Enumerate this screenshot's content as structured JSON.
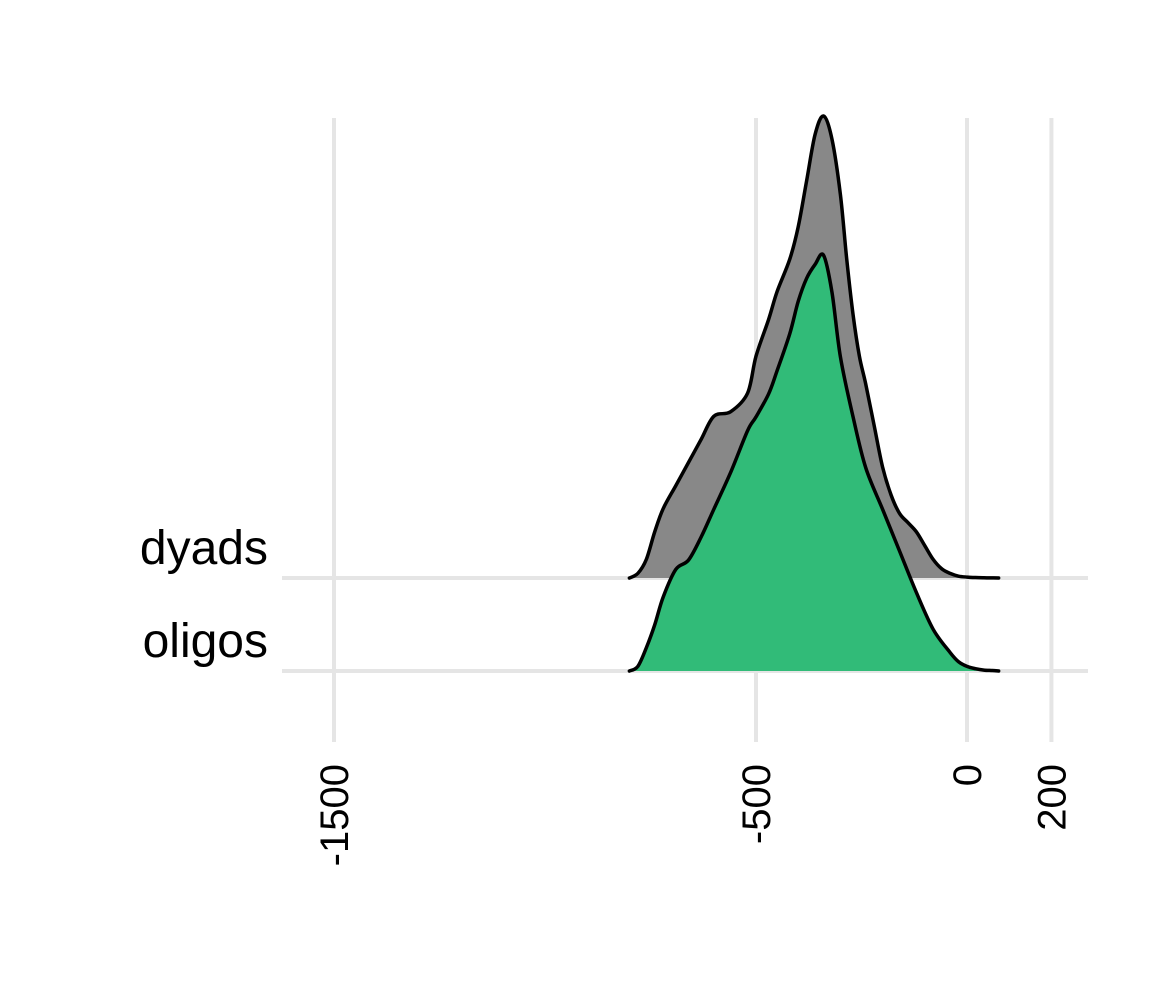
{
  "chart_data": {
    "type": "area",
    "subtype": "ridgeline-density",
    "title": "",
    "xlabel": "",
    "ylabel": "",
    "xlim": [
      -1580,
      380
    ],
    "x_ticks": [
      -1500,
      -500,
      0,
      200
    ],
    "x_tick_labels": [
      "-1500",
      "-500",
      "0",
      "200"
    ],
    "grid": true,
    "categories": [
      "dyads",
      "oligos"
    ],
    "series": [
      {
        "name": "dyads",
        "color": "#888888",
        "x": [
          -800,
          -780,
          -760,
          -740,
          -720,
          -690,
          -660,
          -630,
          -600,
          -560,
          -520,
          -500,
          -470,
          -450,
          -420,
          -400,
          -380,
          -360,
          -340,
          -320,
          -300,
          -285,
          -270,
          -255,
          -240,
          -220,
          -200,
          -180,
          -160,
          -140,
          -120,
          -100,
          -80,
          -60,
          -40,
          -20,
          0,
          20,
          40,
          60,
          75
        ],
        "density": [
          0,
          0.01,
          0.04,
          0.1,
          0.15,
          0.2,
          0.25,
          0.3,
          0.35,
          0.36,
          0.4,
          0.48,
          0.56,
          0.62,
          0.69,
          0.76,
          0.86,
          0.96,
          1.0,
          0.95,
          0.83,
          0.69,
          0.57,
          0.48,
          0.42,
          0.33,
          0.24,
          0.18,
          0.14,
          0.12,
          0.1,
          0.07,
          0.04,
          0.02,
          0.01,
          0.004,
          0.002,
          0.001,
          0.0005,
          0.0002,
          0
        ]
      },
      {
        "name": "oligos",
        "color": "#31bb78",
        "x": [
          -800,
          -780,
          -760,
          -740,
          -720,
          -690,
          -660,
          -630,
          -600,
          -560,
          -520,
          -500,
          -470,
          -450,
          -420,
          -400,
          -380,
          -360,
          -340,
          -320,
          -300,
          -270,
          -240,
          -200,
          -160,
          -120,
          -80,
          -40,
          -20,
          0,
          20,
          40,
          60,
          75
        ],
        "density": [
          0,
          0.01,
          0.05,
          0.1,
          0.16,
          0.22,
          0.24,
          0.29,
          0.35,
          0.43,
          0.52,
          0.55,
          0.6,
          0.65,
          0.73,
          0.8,
          0.85,
          0.88,
          0.9,
          0.82,
          0.68,
          0.55,
          0.44,
          0.35,
          0.26,
          0.17,
          0.09,
          0.04,
          0.02,
          0.01,
          0.005,
          0.002,
          0.001,
          0
        ]
      }
    ]
  }
}
